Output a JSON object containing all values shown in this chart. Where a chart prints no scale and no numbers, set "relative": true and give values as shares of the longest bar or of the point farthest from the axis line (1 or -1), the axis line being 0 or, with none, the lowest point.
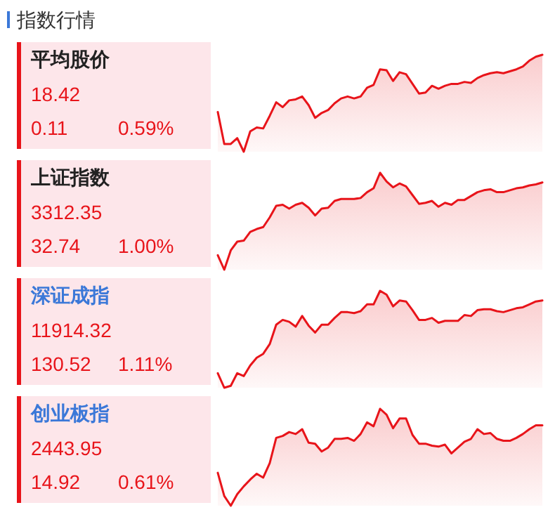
{
  "chart_data": [
    {
      "type": "other",
      "title": "指数行情"
    },
    {
      "type": "other",
      "title": "平均股价",
      "annotations": [
        "18.42",
        "0.11",
        "0.59%"
      ]
    },
    {
      "type": "area",
      "relative": true,
      "categories": [
        null,
        null,
        null,
        null,
        null,
        null,
        null,
        null,
        null,
        null,
        null,
        null,
        null,
        null,
        null,
        null,
        null,
        null,
        null,
        null,
        null,
        null,
        null,
        null,
        null,
        null,
        null,
        null,
        null,
        null,
        null,
        null,
        null,
        null,
        null,
        null,
        null,
        null,
        null,
        null,
        null,
        null,
        null,
        null,
        null,
        null,
        null,
        null,
        null,
        null,
        null
      ],
      "series": [
        {
          "color": "#e8141a",
          "values": [
            0.41,
            0.08,
            0.08,
            0.14,
            0.0,
            0.21,
            0.25,
            0.24,
            0.37,
            0.51,
            0.46,
            0.53,
            0.54,
            0.57,
            0.48,
            0.35,
            0.4,
            0.43,
            0.5,
            0.55,
            0.57,
            0.55,
            0.57,
            0.66,
            0.69,
            0.85,
            0.84,
            0.73,
            0.82,
            0.8,
            0.7,
            0.6,
            0.61,
            0.68,
            0.65,
            0.68,
            0.7,
            0.7,
            0.72,
            0.71,
            0.76,
            0.79,
            0.81,
            0.82,
            0.81,
            0.83,
            0.85,
            0.88,
            0.94,
            0.98,
            1.0
          ]
        }
      ]
    },
    {
      "type": "other",
      "title": "上证指数",
      "annotations": [
        "3312.35",
        "32.74",
        "1.00%"
      ]
    },
    {
      "type": "area",
      "relative": true,
      "categories": [
        null,
        null,
        null,
        null,
        null,
        null,
        null,
        null,
        null,
        null,
        null,
        null,
        null,
        null,
        null,
        null,
        null,
        null,
        null,
        null,
        null,
        null,
        null,
        null,
        null,
        null,
        null,
        null,
        null,
        null,
        null,
        null,
        null,
        null,
        null,
        null,
        null,
        null,
        null,
        null,
        null,
        null,
        null,
        null,
        null,
        null,
        null,
        null,
        null,
        null,
        null
      ],
      "series": [
        {
          "color": "#e8141a",
          "values": [
            0.15,
            0.0,
            0.2,
            0.29,
            0.3,
            0.39,
            0.42,
            0.44,
            0.54,
            0.66,
            0.67,
            0.63,
            0.67,
            0.69,
            0.64,
            0.56,
            0.63,
            0.64,
            0.71,
            0.73,
            0.73,
            0.73,
            0.74,
            0.8,
            0.84,
            1.0,
            0.91,
            0.85,
            0.89,
            0.86,
            0.77,
            0.68,
            0.69,
            0.71,
            0.65,
            0.69,
            0.67,
            0.72,
            0.72,
            0.76,
            0.8,
            0.82,
            0.83,
            0.8,
            0.8,
            0.82,
            0.84,
            0.85,
            0.87,
            0.88,
            0.9
          ]
        }
      ]
    },
    {
      "type": "other",
      "title": "深证成指",
      "annotations": [
        "11914.32",
        "130.52",
        "1.11%"
      ]
    },
    {
      "type": "area",
      "relative": true,
      "categories": [
        null,
        null,
        null,
        null,
        null,
        null,
        null,
        null,
        null,
        null,
        null,
        null,
        null,
        null,
        null,
        null,
        null,
        null,
        null,
        null,
        null,
        null,
        null,
        null,
        null,
        null,
        null,
        null,
        null,
        null,
        null,
        null,
        null,
        null,
        null,
        null,
        null,
        null,
        null,
        null,
        null,
        null,
        null,
        null,
        null,
        null,
        null,
        null,
        null,
        null,
        null
      ],
      "series": [
        {
          "color": "#e8141a",
          "values": [
            0.15,
            0.0,
            0.02,
            0.15,
            0.12,
            0.23,
            0.31,
            0.35,
            0.45,
            0.65,
            0.7,
            0.68,
            0.63,
            0.74,
            0.64,
            0.57,
            0.65,
            0.65,
            0.72,
            0.78,
            0.78,
            0.77,
            0.79,
            0.86,
            0.86,
            1.0,
            0.96,
            0.84,
            0.9,
            0.89,
            0.8,
            0.7,
            0.7,
            0.72,
            0.67,
            0.69,
            0.69,
            0.69,
            0.75,
            0.74,
            0.8,
            0.81,
            0.81,
            0.79,
            0.78,
            0.8,
            0.82,
            0.83,
            0.86,
            0.89,
            0.9
          ]
        }
      ]
    },
    {
      "type": "other",
      "title": "创业板指",
      "annotations": [
        "2443.95",
        "14.92",
        "0.61%"
      ]
    },
    {
      "type": "area",
      "relative": true,
      "categories": [
        null,
        null,
        null,
        null,
        null,
        null,
        null,
        null,
        null,
        null,
        null,
        null,
        null,
        null,
        null,
        null,
        null,
        null,
        null,
        null,
        null,
        null,
        null,
        null,
        null,
        null,
        null,
        null,
        null,
        null,
        null,
        null,
        null,
        null,
        null,
        null,
        null,
        null,
        null,
        null,
        null,
        null,
        null,
        null,
        null,
        null,
        null,
        null,
        null,
        null,
        null
      ],
      "series": [
        {
          "color": "#e8141a",
          "values": [
            0.34,
            0.1,
            0.0,
            0.12,
            0.2,
            0.27,
            0.33,
            0.29,
            0.44,
            0.7,
            0.72,
            0.76,
            0.74,
            0.79,
            0.65,
            0.64,
            0.56,
            0.6,
            0.69,
            0.69,
            0.7,
            0.67,
            0.74,
            0.86,
            0.82,
            1.0,
            0.94,
            0.8,
            0.9,
            0.9,
            0.73,
            0.64,
            0.64,
            0.62,
            0.61,
            0.63,
            0.54,
            0.6,
            0.66,
            0.69,
            0.79,
            0.74,
            0.75,
            0.69,
            0.67,
            0.67,
            0.7,
            0.74,
            0.79,
            0.83,
            0.83
          ]
        }
      ]
    }
  ]
}
